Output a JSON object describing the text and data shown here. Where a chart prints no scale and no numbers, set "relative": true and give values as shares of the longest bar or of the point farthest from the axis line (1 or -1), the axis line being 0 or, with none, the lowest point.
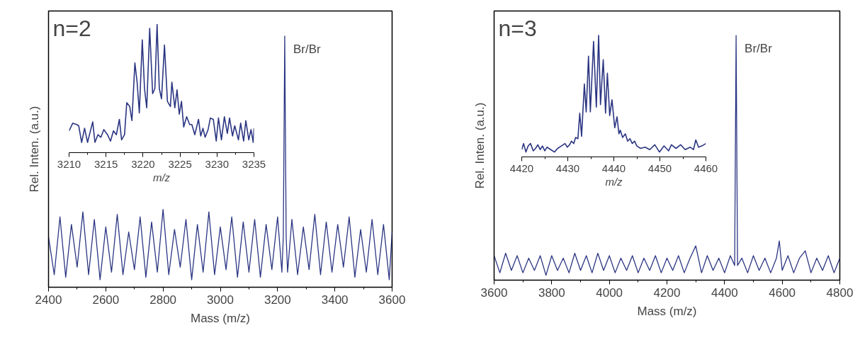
{
  "chart_data": [
    {
      "type": "line",
      "relative": true,
      "xlabel": "Mass (m/z)",
      "ylabel": "Rel. Inten. (a.u.)",
      "xlim": [
        2400,
        3600
      ],
      "xticks": [
        2400,
        2600,
        2800,
        3000,
        3200,
        3400,
        3600
      ],
      "annotations": [
        "n=2",
        {
          "text": "Br/Br",
          "x": 3225,
          "y": 1.0
        }
      ],
      "x": [
        2400,
        2420,
        2440,
        2460,
        2480,
        2500,
        2520,
        2540,
        2560,
        2580,
        2600,
        2620,
        2640,
        2660,
        2680,
        2700,
        2720,
        2740,
        2760,
        2780,
        2800,
        2820,
        2840,
        2860,
        2880,
        2900,
        2920,
        2940,
        2960,
        2980,
        3000,
        3020,
        3040,
        3060,
        3080,
        3100,
        3120,
        3140,
        3160,
        3180,
        3200,
        3215,
        3220,
        3225,
        3230,
        3235,
        3250,
        3270,
        3290,
        3310,
        3330,
        3350,
        3370,
        3390,
        3410,
        3430,
        3450,
        3470,
        3490,
        3510,
        3530,
        3550,
        3570,
        3590,
        3600
      ],
      "series": [
        {
          "color": "#2b3582",
          "values": [
            0.2,
            0.05,
            0.28,
            0.04,
            0.25,
            0.08,
            0.3,
            0.05,
            0.27,
            0.03,
            0.24,
            0.06,
            0.29,
            0.05,
            0.22,
            0.07,
            0.28,
            0.04,
            0.26,
            0.06,
            0.31,
            0.05,
            0.23,
            0.08,
            0.27,
            0.03,
            0.25,
            0.06,
            0.3,
            0.05,
            0.24,
            0.07,
            0.28,
            0.04,
            0.26,
            0.06,
            0.27,
            0.04,
            0.25,
            0.07,
            0.28,
            0.06,
            0.2,
            1.0,
            0.2,
            0.06,
            0.27,
            0.05,
            0.24,
            0.07,
            0.29,
            0.05,
            0.26,
            0.06,
            0.25,
            0.08,
            0.28,
            0.04,
            0.23,
            0.06,
            0.27,
            0.05,
            0.25,
            0.03,
            0.22
          ]
        }
      ]
    },
    {
      "type": "line",
      "relative": true,
      "xlabel": "m/z",
      "xlim": [
        3210,
        3235
      ],
      "xticks": [
        3210,
        3215,
        3220,
        3225,
        3230,
        3235
      ],
      "x": [
        3210.0,
        3210.5,
        3211.0,
        3211.3,
        3211.7,
        3212.1,
        3212.5,
        3212.8,
        3213.2,
        3213.5,
        3213.9,
        3214.3,
        3214.7,
        3215.2,
        3215.6,
        3216.0,
        3216.4,
        3216.8,
        3217.1,
        3217.5,
        3217.8,
        3218.2,
        3218.5,
        3218.9,
        3219.2,
        3219.5,
        3219.9,
        3220.2,
        3220.5,
        3220.9,
        3221.3,
        3221.6,
        3221.9,
        3222.2,
        3222.5,
        3222.9,
        3223.3,
        3223.7,
        3223.9,
        3224.3,
        3224.6,
        3224.9,
        3225.2,
        3225.5,
        3225.9,
        3226.3,
        3226.6,
        3227.0,
        3227.5,
        3227.8,
        3228.1,
        3228.4,
        3228.8,
        3229.1,
        3229.5,
        3229.9,
        3230.2,
        3230.6,
        3231.0,
        3231.4,
        3231.7,
        3232.1,
        3232.4,
        3232.9,
        3233.2,
        3233.6,
        3233.9,
        3234.3,
        3234.6,
        3234.9,
        3235.0
      ],
      "series": [
        {
          "color": "#2b3582",
          "values": [
            0.17,
            0.23,
            0.22,
            0.21,
            0.08,
            0.19,
            0.08,
            0.15,
            0.24,
            0.08,
            0.14,
            0.12,
            0.18,
            0.14,
            0.09,
            0.17,
            0.14,
            0.26,
            0.1,
            0.14,
            0.39,
            0.36,
            0.25,
            0.7,
            0.55,
            0.31,
            0.88,
            0.5,
            0.35,
            0.97,
            0.46,
            0.5,
            1.0,
            0.5,
            0.42,
            0.84,
            0.4,
            0.36,
            0.55,
            0.35,
            0.49,
            0.3,
            0.4,
            0.2,
            0.28,
            0.22,
            0.22,
            0.14,
            0.26,
            0.13,
            0.19,
            0.12,
            0.18,
            0.27,
            0.26,
            0.09,
            0.27,
            0.1,
            0.28,
            0.15,
            0.27,
            0.13,
            0.21,
            0.1,
            0.23,
            0.09,
            0.25,
            0.1,
            0.18,
            0.08,
            0.19
          ]
        }
      ]
    },
    {
      "type": "line",
      "relative": true,
      "xlabel": "Mass (m/z)",
      "ylabel": "Rel. Inten. (a.u.)",
      "xlim": [
        3600,
        4800
      ],
      "xticks": [
        3600,
        3800,
        4000,
        4200,
        4400,
        4600,
        4800
      ],
      "annotations": [
        "n=3",
        {
          "text": "Br/Br",
          "x": 4440,
          "y": 1.0
        }
      ],
      "x": [
        3600,
        3620,
        3640,
        3660,
        3680,
        3700,
        3720,
        3740,
        3760,
        3780,
        3800,
        3820,
        3840,
        3860,
        3880,
        3900,
        3920,
        3940,
        3960,
        3980,
        4000,
        4020,
        4040,
        4060,
        4080,
        4100,
        4120,
        4140,
        4160,
        4180,
        4200,
        4220,
        4240,
        4260,
        4280,
        4300,
        4320,
        4340,
        4360,
        4380,
        4400,
        4420,
        4435,
        4440,
        4445,
        4460,
        4480,
        4500,
        4520,
        4540,
        4560,
        4580,
        4590,
        4600,
        4620,
        4640,
        4660,
        4680,
        4700,
        4720,
        4740,
        4760,
        4780,
        4800
      ],
      "series": [
        {
          "color": "#2b3582",
          "values": [
            0.1,
            0.03,
            0.11,
            0.04,
            0.1,
            0.03,
            0.09,
            0.04,
            0.1,
            0.02,
            0.1,
            0.04,
            0.09,
            0.03,
            0.11,
            0.04,
            0.1,
            0.03,
            0.11,
            0.04,
            0.1,
            0.03,
            0.09,
            0.04,
            0.1,
            0.03,
            0.09,
            0.04,
            0.1,
            0.03,
            0.09,
            0.04,
            0.1,
            0.03,
            0.09,
            0.14,
            0.03,
            0.1,
            0.04,
            0.09,
            0.03,
            0.1,
            0.06,
            1.0,
            0.06,
            0.09,
            0.03,
            0.1,
            0.04,
            0.09,
            0.03,
            0.09,
            0.16,
            0.04,
            0.1,
            0.03,
            0.09,
            0.12,
            0.03,
            0.09,
            0.04,
            0.1,
            0.03,
            0.09
          ]
        }
      ]
    },
    {
      "type": "line",
      "relative": true,
      "xlabel": "m/z",
      "xlim": [
        4420,
        4460
      ],
      "xticks": [
        4420,
        4430,
        4440,
        4450,
        4460
      ],
      "x": [
        4420.0,
        4420.4,
        4420.9,
        4421.4,
        4421.9,
        4422.5,
        4423.0,
        4423.5,
        4424.0,
        4424.5,
        4425.0,
        4425.5,
        4426.3,
        4427.1,
        4427.8,
        4428.6,
        4429.4,
        4429.9,
        4430.4,
        4430.8,
        4431.3,
        4431.7,
        4432.2,
        4432.6,
        4433.0,
        4433.6,
        4434.0,
        4434.5,
        4434.9,
        4435.6,
        4436.2,
        4436.7,
        4437.1,
        4437.7,
        4438.2,
        4438.6,
        4439.1,
        4439.6,
        4440.2,
        4440.7,
        4441.1,
        4441.4,
        4441.9,
        4442.5,
        4443.0,
        4443.5,
        4444.0,
        4444.5,
        4445.0,
        4445.8,
        4446.8,
        4447.8,
        4448.9,
        4449.9,
        4450.9,
        4451.9,
        4452.5,
        4453.5,
        4454.5,
        4455.5,
        4456.6,
        4457.3,
        4457.8,
        4458.4,
        4459.1,
        4460.0
      ],
      "series": [
        {
          "color": "#2b3582",
          "values": [
            0.06,
            0.11,
            0.04,
            0.09,
            0.11,
            0.05,
            0.07,
            0.1,
            0.06,
            0.09,
            0.05,
            0.08,
            0.06,
            0.04,
            0.07,
            0.09,
            0.11,
            0.08,
            0.1,
            0.13,
            0.11,
            0.16,
            0.15,
            0.36,
            0.17,
            0.6,
            0.37,
            0.83,
            0.37,
            0.95,
            0.41,
            1.0,
            0.43,
            0.8,
            0.36,
            0.69,
            0.34,
            0.47,
            0.24,
            0.33,
            0.19,
            0.22,
            0.16,
            0.19,
            0.13,
            0.15,
            0.11,
            0.13,
            0.09,
            0.07,
            0.08,
            0.06,
            0.1,
            0.04,
            0.09,
            0.05,
            0.1,
            0.07,
            0.1,
            0.06,
            0.08,
            0.06,
            0.14,
            0.08,
            0.09,
            0.11
          ]
        }
      ]
    }
  ]
}
